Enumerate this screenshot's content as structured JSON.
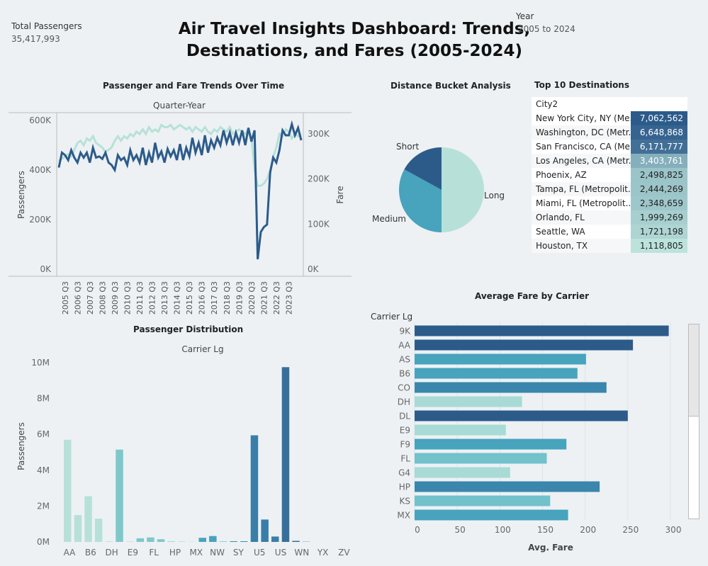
{
  "kpi": {
    "label": "Total Passengers",
    "value": "35,417,993"
  },
  "title_line1": "Air Travel Insights Dashboard: Trends,",
  "title_line2": "Destinations, and Fares (2005-2024)",
  "year_filter": {
    "label": "Year",
    "value": "2005 to 2024"
  },
  "colors": {
    "dark": "#2c5b8a",
    "mid": "#48a3bd",
    "light": "#b7e1d8",
    "axis": "#bbbbbb"
  },
  "trend": {
    "title": "Passenger and Fare Trends Over Time",
    "header": "Quarter-Year",
    "ylabel_left": "Passengers",
    "ylabel_right": "Fare",
    "left_ticks": [
      "600K",
      "400K",
      "200K",
      "0K"
    ],
    "right_ticks": [
      "300K",
      "200K",
      "100K",
      "0K"
    ],
    "x_ticks": [
      "2005 Q3",
      "2006 Q3",
      "2007 Q3",
      "2008 Q3",
      "2009 Q3",
      "2010 Q3",
      "2011 Q3",
      "2012 Q3",
      "2013 Q3",
      "2014 Q3",
      "2015 Q3",
      "2016 Q3",
      "2017 Q3",
      "2018 Q3",
      "2019 Q3",
      "2020 Q3",
      "2021 Q3",
      "2022 Q3",
      "2023 Q3"
    ]
  },
  "pie": {
    "title": "Distance Bucket Analysis"
  },
  "top10": {
    "title": "Top 10 Destinations",
    "header": "City2"
  },
  "dist": {
    "title": "Passenger Distribution",
    "header": "Carrier Lg",
    "ylabel": "Passengers",
    "y_ticks": [
      "10M",
      "8M",
      "6M",
      "4M",
      "2M",
      "0M"
    ]
  },
  "fare": {
    "title": "Average Fare by Carrier",
    "header": "Carrier Lg",
    "xlabel": "Avg. Fare",
    "x_ticks": [
      "0",
      "50",
      "100",
      "150",
      "200",
      "250",
      "300"
    ]
  },
  "chart_data": [
    {
      "type": "line",
      "title": "Passenger and Fare Trends Over Time",
      "xlabel": "Quarter-Year",
      "x_start": "2005 Q1",
      "series": [
        {
          "name": "Passengers",
          "axis": "left",
          "values": [
            410000,
            470000,
            460000,
            440000,
            480000,
            450000,
            430000,
            470000,
            450000,
            470000,
            430000,
            490000,
            450000,
            455000,
            445000,
            470000,
            430000,
            420000,
            400000,
            460000,
            440000,
            450000,
            420000,
            480000,
            440000,
            460000,
            430000,
            490000,
            420000,
            470000,
            430000,
            510000,
            450000,
            475000,
            430000,
            485000,
            455000,
            480000,
            440000,
            505000,
            440000,
            490000,
            455000,
            530000,
            470000,
            510000,
            460000,
            540000,
            470000,
            520000,
            490000,
            530000,
            500000,
            560000,
            510000,
            550000,
            500000,
            550000,
            510000,
            560000,
            500000,
            570000,
            515000,
            560000,
            40000,
            150000,
            170000,
            180000,
            390000,
            450000,
            430000,
            480000,
            560000,
            540000,
            540000,
            585000,
            540000,
            570000,
            520000
          ],
          "ylim": [
            0,
            600000
          ]
        },
        {
          "name": "Fare",
          "axis": "right",
          "values": [
            240000,
            245000,
            250000,
            255000,
            250000,
            265000,
            280000,
            285000,
            275000,
            290000,
            285000,
            295000,
            280000,
            275000,
            270000,
            260000,
            265000,
            270000,
            285000,
            295000,
            285000,
            295000,
            290000,
            300000,
            295000,
            305000,
            300000,
            310000,
            300000,
            315000,
            305000,
            310000,
            305000,
            320000,
            315000,
            315000,
            320000,
            310000,
            315000,
            320000,
            315000,
            310000,
            315000,
            305000,
            315000,
            310000,
            305000,
            315000,
            305000,
            300000,
            310000,
            305000,
            315000,
            310000,
            305000,
            315000,
            300000,
            305000,
            310000,
            305000,
            300000,
            310000,
            290000,
            220000,
            185000,
            185000,
            190000,
            200000,
            220000,
            250000,
            270000,
            300000,
            295000,
            310000,
            305000,
            290000,
            300000,
            295000,
            300000
          ],
          "ylim": [
            0,
            330000
          ]
        }
      ]
    },
    {
      "type": "pie",
      "title": "Distance Bucket Analysis",
      "categories": [
        "Long",
        "Medium",
        "Short"
      ],
      "values": [
        50,
        33,
        17
      ]
    },
    {
      "type": "table",
      "title": "Top 10 Destinations",
      "columns": [
        "City2",
        "Passengers"
      ],
      "rows": [
        [
          "New York City, NY (Me..",
          "7,062,562"
        ],
        [
          "Washington, DC (Metr..",
          "6,648,868"
        ],
        [
          "San Francisco, CA (Me..",
          "6,171,777"
        ],
        [
          "Los Angeles, CA (Metr..",
          "3,403,761"
        ],
        [
          "Phoenix, AZ",
          "2,498,825"
        ],
        [
          "Tampa, FL (Metropolit..",
          "2,444,269"
        ],
        [
          "Miami, FL (Metropolit..",
          "2,348,659"
        ],
        [
          "Orlando, FL",
          "1,999,269"
        ],
        [
          "Seattle, WA",
          "1,721,198"
        ],
        [
          "Houston, TX",
          "1,118,805"
        ]
      ],
      "values": [
        7062562,
        6648868,
        6171777,
        3403761,
        2498825,
        2444269,
        2348659,
        1999269,
        1721198,
        1118805
      ]
    },
    {
      "type": "bar",
      "title": "Passenger Distribution",
      "xlabel": "Carrier Lg",
      "ylabel": "Passengers",
      "x_tick_labels": [
        "AA",
        "B6",
        "DH",
        "E9",
        "FL",
        "HP",
        "MX",
        "NW",
        "SY",
        "U5",
        "US",
        "WN",
        "YX",
        "ZV"
      ],
      "values": [
        5700000,
        1500000,
        2550000,
        1300000,
        30000,
        5150000,
        10000,
        200000,
        250000,
        150000,
        20000,
        10000,
        5000,
        230000,
        330000,
        20000,
        40000,
        40000,
        5950000,
        1250000,
        300000,
        9750000,
        60000,
        10000
      ],
      "ylim": [
        0,
        10000000
      ]
    },
    {
      "type": "bar",
      "orientation": "horizontal",
      "title": "Average Fare by Carrier",
      "ylabel": "Carrier Lg",
      "xlabel": "Avg. Fare",
      "categories": [
        "9K",
        "AA",
        "AS",
        "B6",
        "CO",
        "DH",
        "DL",
        "E9",
        "F9",
        "FL",
        "G4",
        "HP",
        "KS",
        "MX"
      ],
      "values": [
        298,
        256,
        201,
        191,
        225,
        126,
        250,
        107,
        178,
        155,
        112,
        217,
        159,
        180
      ],
      "xlim": [
        0,
        300
      ]
    }
  ]
}
